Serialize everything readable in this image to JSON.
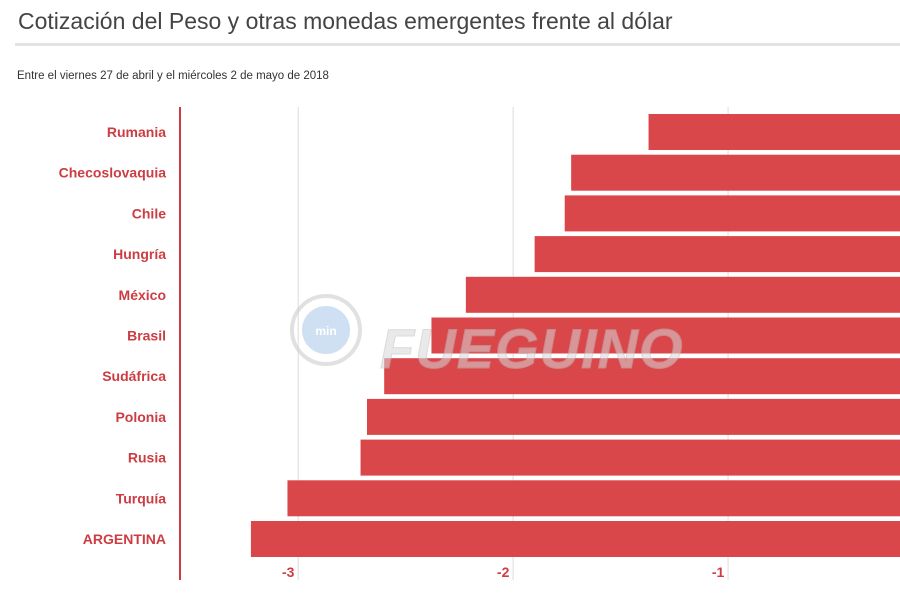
{
  "header": {
    "title": "Cotización del Peso y otras monedas emergentes frente al dólar",
    "subtitle": "Entre el viernes 27 de abril y el miércoles 2 de mayo de 2018"
  },
  "watermark": {
    "badge": "min",
    "brand": "FUEGUINO"
  },
  "colors": {
    "bar": "#d9474b",
    "category_label": "#cc3d43",
    "axis_line": "#cf3a3f",
    "gridline": "#dcdcdc",
    "tick_label": "#cc3d43"
  },
  "chart_data": {
    "type": "bar",
    "orientation": "horizontal",
    "categories": [
      "Rumania",
      "Checoslovaquia",
      "Chile",
      "Hungría",
      "México",
      "Brasil",
      "Sudáfrica",
      "Polonia",
      "Rusia",
      "Turquía",
      "ARGENTINA"
    ],
    "values": [
      -1.37,
      -1.73,
      -1.76,
      -1.9,
      -2.22,
      -2.38,
      -2.6,
      -2.68,
      -2.71,
      -3.05,
      -3.22
    ],
    "xlim": [
      -3.55,
      -0.2
    ],
    "xticks": [
      -3,
      -2,
      -1
    ],
    "xtick_labels": [
      "-3",
      "-2",
      "-1"
    ],
    "grid": true
  }
}
